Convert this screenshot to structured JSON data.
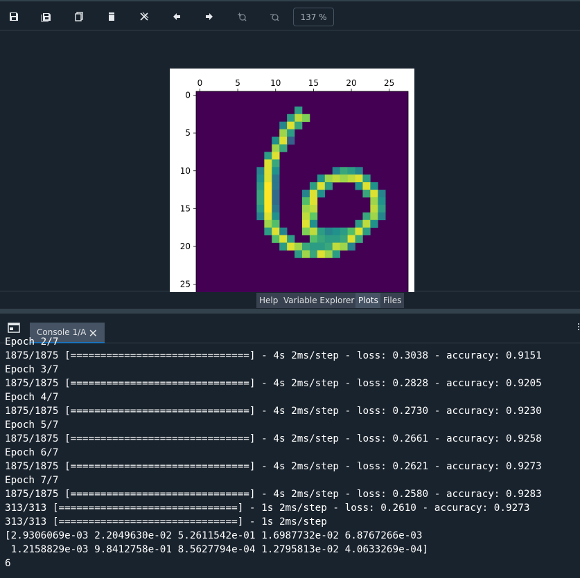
{
  "toolbar": {
    "buttons": [
      {
        "name": "save-icon",
        "glyph": "save",
        "disabled": false
      },
      {
        "name": "save-all-icon",
        "glyph": "save-all",
        "disabled": false
      },
      {
        "name": "copy-icon",
        "glyph": "copy",
        "disabled": false
      },
      {
        "name": "delete-icon",
        "glyph": "delete",
        "disabled": false
      },
      {
        "name": "close-all-icon",
        "glyph": "close-all",
        "disabled": false
      },
      {
        "name": "previous-icon",
        "glyph": "arrow-left",
        "disabled": false
      },
      {
        "name": "next-icon",
        "glyph": "arrow-right",
        "disabled": false
      },
      {
        "name": "zoom-in-icon",
        "glyph": "zoom-in",
        "disabled": true
      },
      {
        "name": "zoom-out-icon",
        "glyph": "zoom-out",
        "disabled": true
      }
    ],
    "zoom": "137 %"
  },
  "pane_tabs": [
    {
      "label": "Help",
      "active": false
    },
    {
      "label": "Variable Explorer",
      "active": false
    },
    {
      "label": "Plots",
      "active": true
    },
    {
      "label": "Files",
      "active": false
    }
  ],
  "console": {
    "tab_label": "Console 1/A",
    "lines": [
      "Epoch 2/7",
      "1875/1875 [==============================] - 4s 2ms/step - loss: 0.3038 - accuracy: 0.9151",
      "Epoch 3/7",
      "1875/1875 [==============================] - 4s 2ms/step - loss: 0.2828 - accuracy: 0.9205",
      "Epoch 4/7",
      "1875/1875 [==============================] - 4s 2ms/step - loss: 0.2730 - accuracy: 0.9230",
      "Epoch 5/7",
      "1875/1875 [==============================] - 4s 2ms/step - loss: 0.2661 - accuracy: 0.9258",
      "Epoch 6/7",
      "1875/1875 [==============================] - 4s 2ms/step - loss: 0.2621 - accuracy: 0.9273",
      "Epoch 7/7",
      "1875/1875 [==============================] - 4s 2ms/step - loss: 0.2580 - accuracy: 0.9283",
      "313/313 [==============================] - 1s 2ms/step - loss: 0.2610 - accuracy: 0.9273",
      "313/313 [==============================] - 1s 2ms/step",
      "[2.9306069e-03 2.2049630e-02 5.2611542e-01 1.6987732e-02 6.8767266e-03",
      " 1.2158829e-03 9.8412758e-01 8.5627794e-04 1.2795813e-02 4.0633269e-04]",
      "6"
    ]
  },
  "chart_data": {
    "type": "heatmap",
    "xticks": [
      0,
      5,
      10,
      15,
      20,
      25
    ],
    "yticks": [
      0,
      5,
      10,
      15,
      20,
      25
    ],
    "xlim": [
      -0.5,
      27.5
    ],
    "ylim": [
      27.5,
      -0.5
    ],
    "xaxis_position": "top",
    "colormap": "viridis",
    "size": [
      28,
      28
    ],
    "background_value": 0,
    "pixels": [
      [
        2,
        13,
        0.55
      ],
      [
        3,
        13,
        0.9
      ],
      [
        3,
        14,
        0.8
      ],
      [
        3,
        12,
        0.55
      ],
      [
        4,
        11,
        0.45
      ],
      [
        4,
        12,
        0.95
      ],
      [
        4,
        13,
        0.6
      ],
      [
        5,
        11,
        0.85
      ],
      [
        5,
        12,
        0.55
      ],
      [
        6,
        10,
        0.5
      ],
      [
        6,
        11,
        0.95
      ],
      [
        6,
        12,
        0.3
      ],
      [
        7,
        10,
        0.85
      ],
      [
        7,
        11,
        0.6
      ],
      [
        8,
        9,
        0.55
      ],
      [
        8,
        10,
        0.95
      ],
      [
        9,
        9,
        0.95
      ],
      [
        9,
        10,
        0.6
      ],
      [
        10,
        8,
        0.45
      ],
      [
        10,
        9,
        0.95
      ],
      [
        10,
        10,
        0.5
      ],
      [
        10,
        18,
        0.45
      ],
      [
        10,
        19,
        0.6
      ],
      [
        10,
        20,
        0.55
      ],
      [
        10,
        21,
        0.45
      ],
      [
        11,
        8,
        0.5
      ],
      [
        11,
        9,
        0.95
      ],
      [
        11,
        10,
        0.4
      ],
      [
        11,
        16,
        0.5
      ],
      [
        11,
        17,
        0.85
      ],
      [
        11,
        18,
        0.9
      ],
      [
        11,
        19,
        0.85
      ],
      [
        11,
        20,
        0.9
      ],
      [
        11,
        21,
        0.95
      ],
      [
        11,
        22,
        0.55
      ],
      [
        12,
        8,
        0.55
      ],
      [
        12,
        9,
        1.0
      ],
      [
        12,
        10,
        0.4
      ],
      [
        12,
        15,
        0.55
      ],
      [
        12,
        16,
        0.95
      ],
      [
        12,
        17,
        0.55
      ],
      [
        12,
        21,
        0.5
      ],
      [
        12,
        22,
        0.95
      ],
      [
        12,
        23,
        0.5
      ],
      [
        13,
        8,
        0.6
      ],
      [
        13,
        9,
        1.0
      ],
      [
        13,
        10,
        0.35
      ],
      [
        13,
        14,
        0.45
      ],
      [
        13,
        15,
        0.95
      ],
      [
        13,
        16,
        0.5
      ],
      [
        13,
        22,
        0.6
      ],
      [
        13,
        23,
        0.95
      ],
      [
        13,
        24,
        0.45
      ],
      [
        14,
        8,
        0.6
      ],
      [
        14,
        9,
        1.0
      ],
      [
        14,
        10,
        0.35
      ],
      [
        14,
        14,
        0.7
      ],
      [
        14,
        15,
        0.95
      ],
      [
        14,
        23,
        0.85
      ],
      [
        14,
        24,
        0.5
      ],
      [
        15,
        8,
        0.55
      ],
      [
        15,
        9,
        1.0
      ],
      [
        15,
        10,
        0.4
      ],
      [
        15,
        14,
        0.85
      ],
      [
        15,
        15,
        0.9
      ],
      [
        15,
        23,
        0.9
      ],
      [
        15,
        24,
        0.55
      ],
      [
        16,
        8,
        0.45
      ],
      [
        16,
        9,
        0.95
      ],
      [
        16,
        10,
        0.5
      ],
      [
        16,
        14,
        0.9
      ],
      [
        16,
        15,
        0.75
      ],
      [
        16,
        22,
        0.6
      ],
      [
        16,
        23,
        0.85
      ],
      [
        16,
        24,
        0.45
      ],
      [
        17,
        9,
        0.85
      ],
      [
        17,
        10,
        0.7
      ],
      [
        17,
        14,
        0.95
      ],
      [
        17,
        15,
        0.5
      ],
      [
        17,
        21,
        0.55
      ],
      [
        17,
        22,
        0.9
      ],
      [
        17,
        23,
        0.5
      ],
      [
        18,
        9,
        0.55
      ],
      [
        18,
        10,
        0.95
      ],
      [
        18,
        11,
        0.45
      ],
      [
        18,
        14,
        0.8
      ],
      [
        18,
        15,
        0.9
      ],
      [
        18,
        16,
        0.55
      ],
      [
        18,
        17,
        0.45
      ],
      [
        18,
        18,
        0.5
      ],
      [
        18,
        19,
        0.55
      ],
      [
        18,
        20,
        0.7
      ],
      [
        18,
        21,
        0.95
      ],
      [
        18,
        22,
        0.55
      ],
      [
        19,
        10,
        0.7
      ],
      [
        19,
        11,
        0.95
      ],
      [
        19,
        12,
        0.55
      ],
      [
        19,
        15,
        0.7
      ],
      [
        19,
        16,
        0.6
      ],
      [
        19,
        17,
        0.55
      ],
      [
        19,
        18,
        0.55
      ],
      [
        19,
        19,
        0.6
      ],
      [
        19,
        20,
        0.95
      ],
      [
        19,
        21,
        0.6
      ],
      [
        20,
        11,
        0.55
      ],
      [
        20,
        12,
        0.95
      ],
      [
        20,
        13,
        0.85
      ],
      [
        20,
        14,
        0.6
      ],
      [
        20,
        15,
        0.55
      ],
      [
        20,
        16,
        0.55
      ],
      [
        20,
        17,
        0.6
      ],
      [
        20,
        18,
        0.9
      ],
      [
        20,
        19,
        0.85
      ],
      [
        20,
        20,
        0.45
      ],
      [
        21,
        13,
        0.55
      ],
      [
        21,
        14,
        0.85
      ],
      [
        21,
        15,
        0.6
      ],
      [
        21,
        16,
        0.95
      ],
      [
        21,
        17,
        0.85
      ],
      [
        21,
        18,
        0.55
      ]
    ]
  }
}
